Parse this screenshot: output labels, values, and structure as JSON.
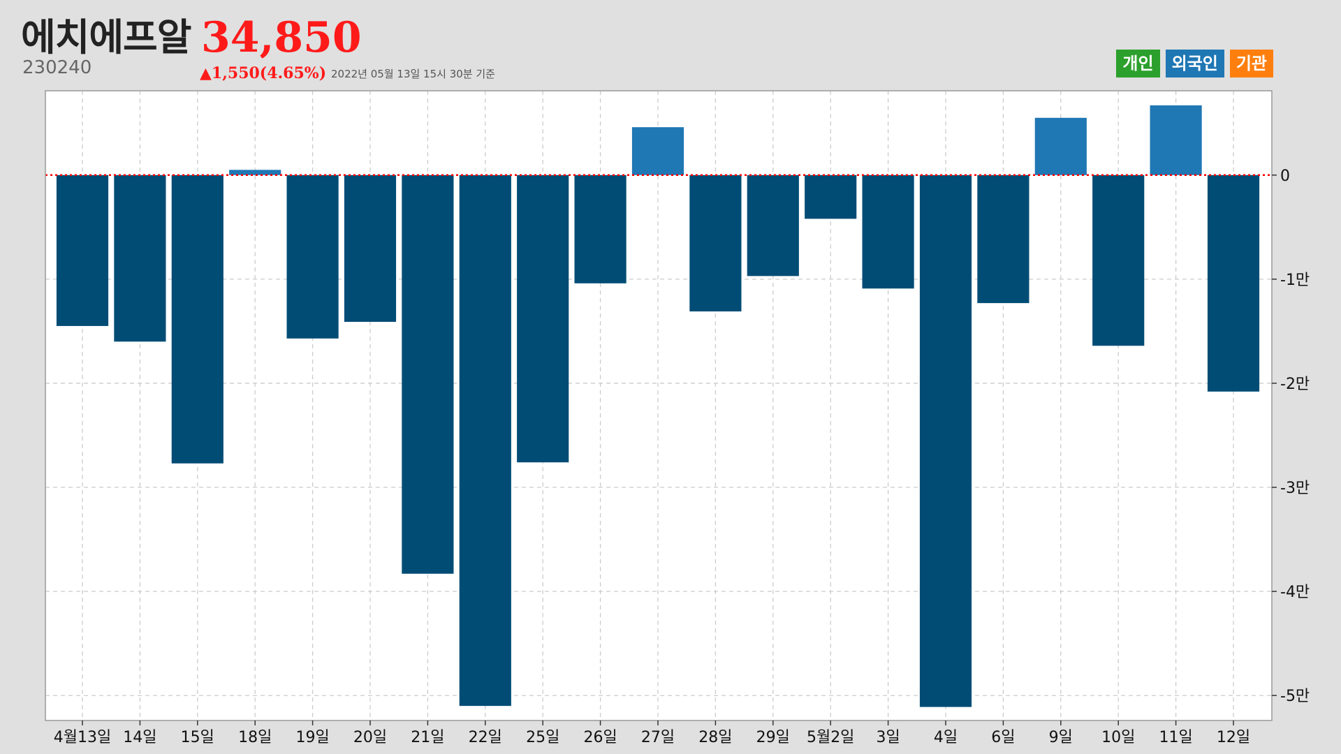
{
  "header": {
    "stock_name": "에치에프알",
    "price": "34,850",
    "code": "230240",
    "change": "▲1,550(4.65%)",
    "timestamp": "2022년 05월 13일 15시 30분 기준"
  },
  "legend": [
    {
      "label": "개인",
      "color": "#2ca02c"
    },
    {
      "label": "외국인",
      "color": "#1f77b4"
    },
    {
      "label": "기관",
      "color": "#ff7f0e"
    }
  ],
  "colors": {
    "negative_bar": "#004c75",
    "positive_bar": "#1f77b4",
    "zero_line": "#ff0000",
    "grid": "#cccccc",
    "frame": "#999999",
    "plot_bg": "#ffffff"
  },
  "chart_data": {
    "type": "bar",
    "series": [
      {
        "name": "외국인",
        "values": [
          -14500,
          -16000,
          -27700,
          500,
          -15700,
          -14100,
          -38300,
          -51000,
          -27600,
          -10400,
          4600,
          -13100,
          -9700,
          -4200,
          -10900,
          -51100,
          -12300,
          5500,
          -16400,
          6700,
          -20800
        ]
      }
    ],
    "categories": [
      "4월13일",
      "14일",
      "15일",
      "18일",
      "19일",
      "20일",
      "21일",
      "22일",
      "25일",
      "26일",
      "27일",
      "28일",
      "29일",
      "5월2일",
      "3일",
      "4일",
      "6일",
      "9일",
      "10일",
      "11일",
      "12일"
    ],
    "ylim": [
      -52400,
      8100
    ],
    "yticks": [
      {
        "value": 0,
        "label": "0"
      },
      {
        "value": -10000,
        "label": "-1만"
      },
      {
        "value": -20000,
        "label": "-2만"
      },
      {
        "value": -30000,
        "label": "-3만"
      },
      {
        "value": -40000,
        "label": "-4만"
      },
      {
        "value": -50000,
        "label": "-5만"
      }
    ],
    "grid": true,
    "y_axis_side": "right",
    "legend_position": "top-right"
  }
}
